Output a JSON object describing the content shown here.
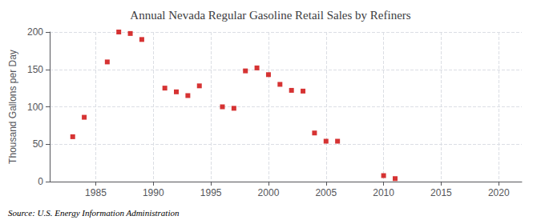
{
  "chart_data": {
    "type": "scatter",
    "title": "Annual Nevada Regular Gasoline Retail Sales by Refiners",
    "ylabel": "Thousand Gallons per Day",
    "annotations": [
      "Source: U.S. Energy Information Administration"
    ],
    "x": [
      1983,
      1984,
      1986,
      1987,
      1988,
      1989,
      1991,
      1992,
      1993,
      1994,
      1996,
      1997,
      1998,
      1999,
      2000,
      2001,
      2002,
      2003,
      2004,
      2005,
      2006,
      2010,
      2011
    ],
    "values": [
      60,
      86,
      160,
      200,
      198,
      190,
      125,
      120,
      115,
      128,
      100,
      98,
      148,
      152,
      143,
      130,
      122,
      121,
      65,
      54,
      54,
      8,
      4
    ],
    "color": "#cc0000",
    "marker": "square",
    "xlim": [
      1981,
      2022
    ],
    "xticks": [
      1985,
      1990,
      1995,
      2000,
      2005,
      2010,
      2015,
      2020
    ],
    "ylim": [
      0,
      200
    ],
    "yticks": [
      0,
      50,
      100,
      150,
      200
    ],
    "grid": true
  }
}
